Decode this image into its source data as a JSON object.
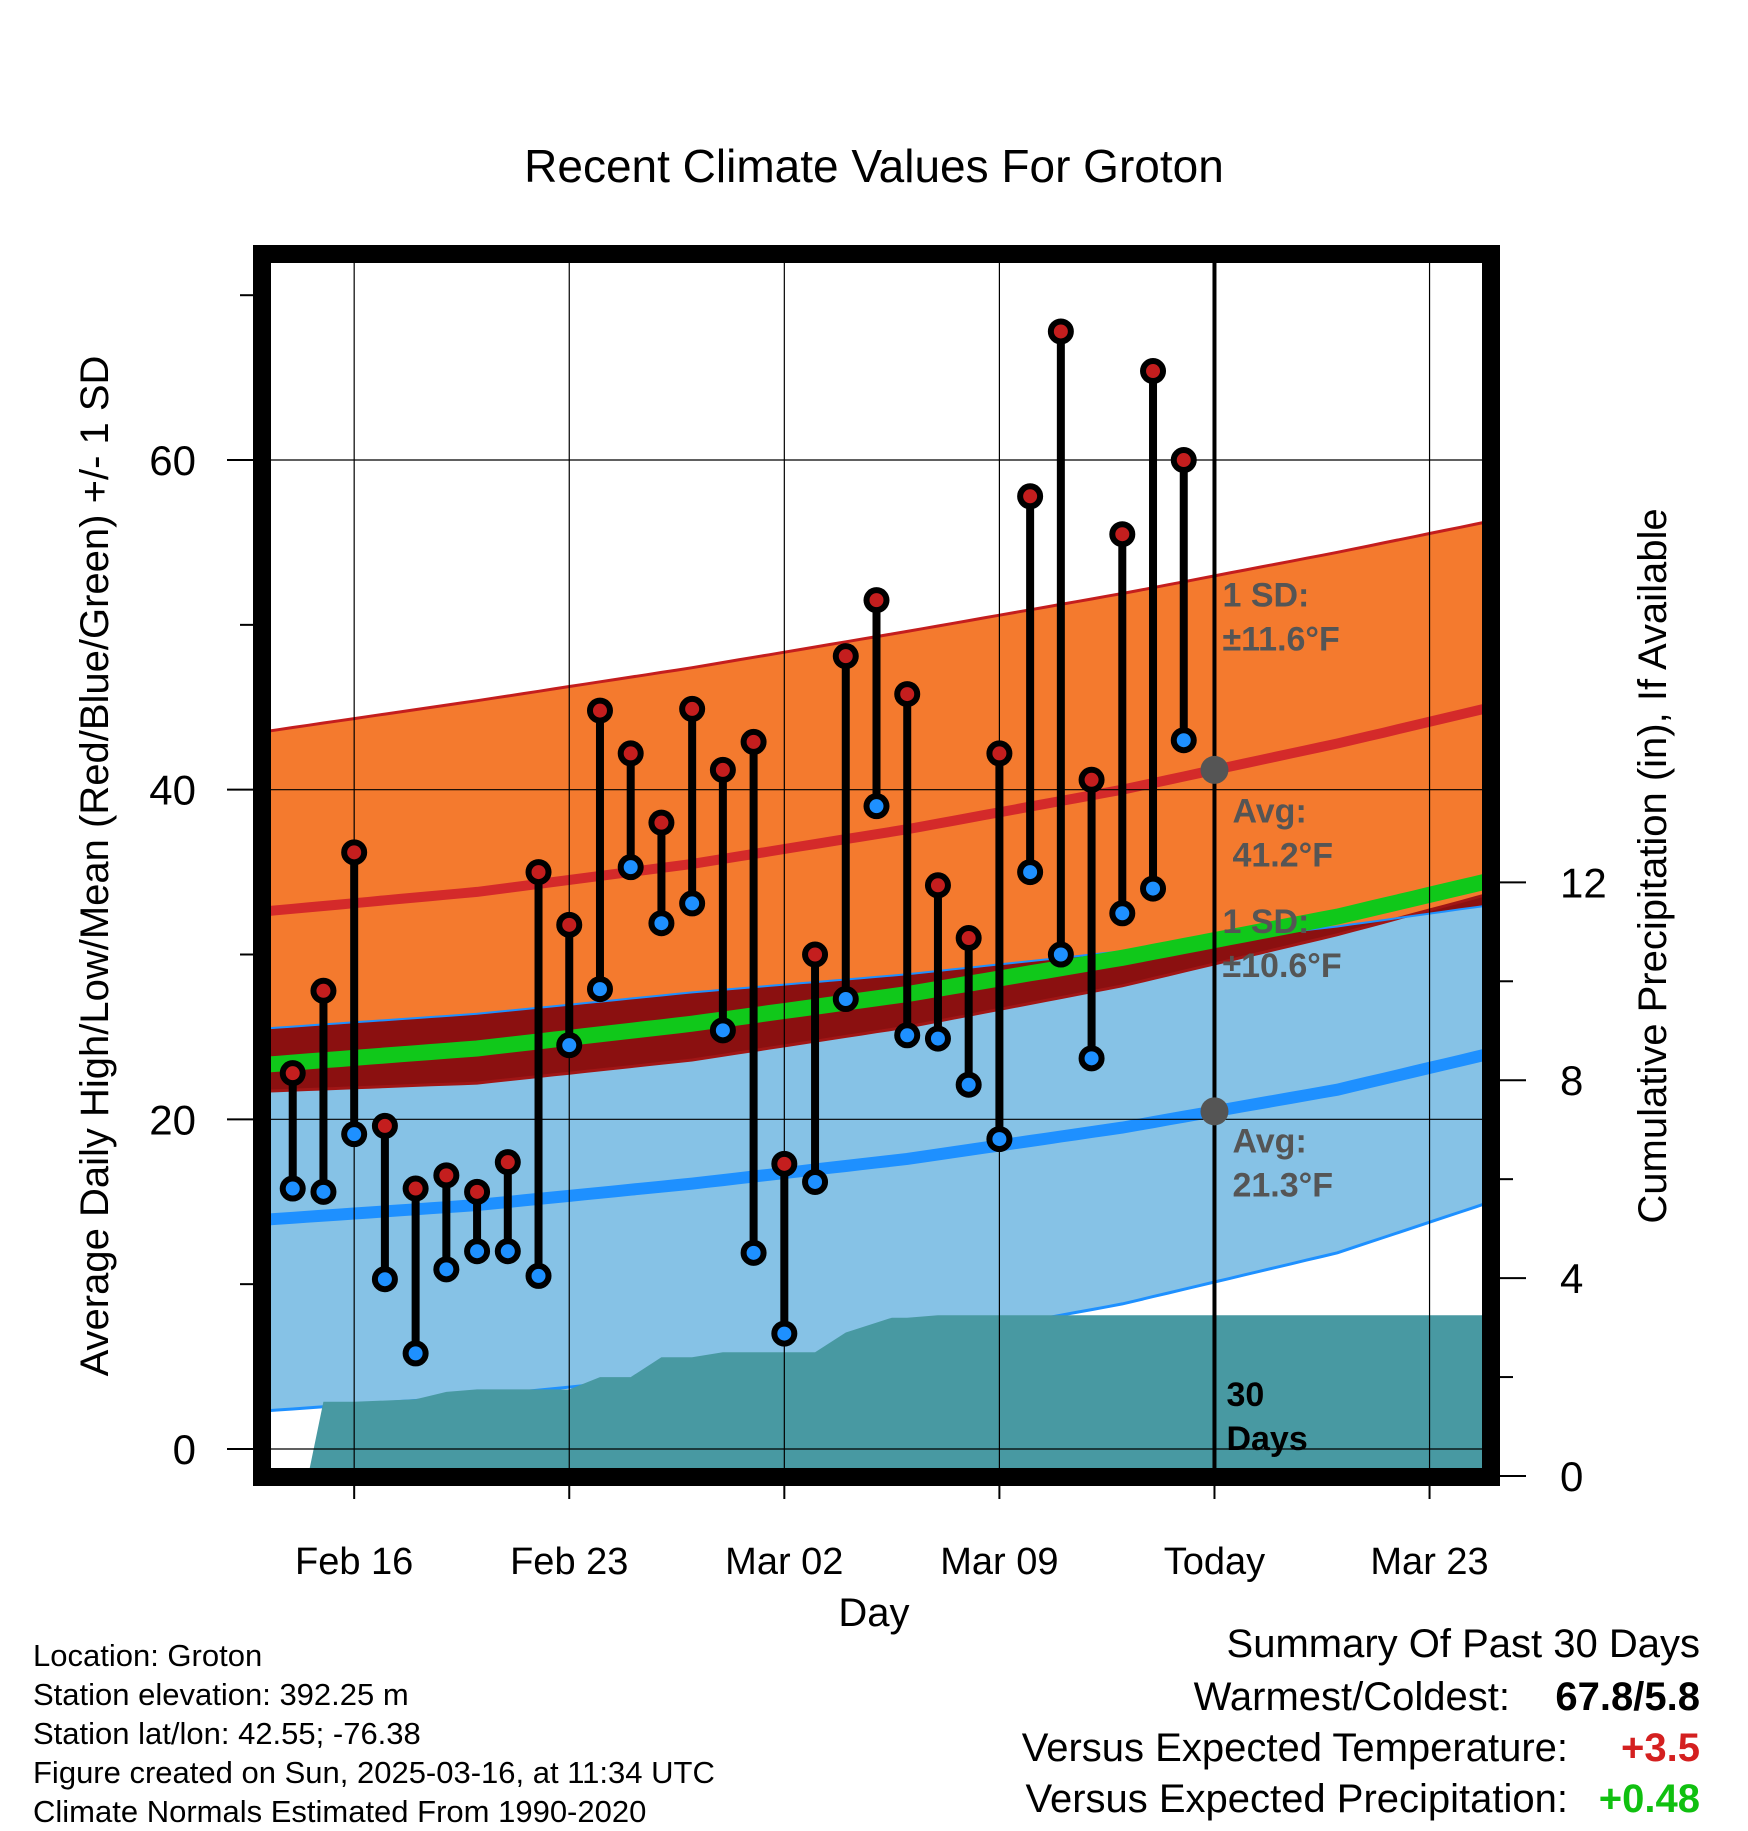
{
  "chart_data": {
    "type": "line",
    "title": "Recent Climate Values For Groton",
    "xlabel": "Day",
    "ylabel": "Average Daily High/Low/Mean (Red/Blue/Green) +/- 1 SD",
    "ylabel_right": "Cumulative Precipitation (in), If Available",
    "x_ticks": [
      {
        "day": 16,
        "label": "Feb 16"
      },
      {
        "day": 23,
        "label": "Feb 23"
      },
      {
        "day": 30,
        "label": "Mar 02"
      },
      {
        "day": 37,
        "label": "Mar 09"
      },
      {
        "day": 44,
        "label": "Today"
      },
      {
        "day": 51,
        "label": "Mar 23"
      }
    ],
    "x_units": "day number (Feb 16 = 16, Mar 02 = 30, Today = Mar 16 = 44)",
    "xlim": [
      13,
      53
    ],
    "ylim": [
      -1.7,
      72.5
    ],
    "y_ticks": [
      0,
      20,
      40,
      60
    ],
    "y2lim": [
      -0.02,
      24.7
    ],
    "y2_ticks": [
      0,
      4,
      8,
      12
    ],
    "grid": true,
    "today_day": 44,
    "normals": {
      "days": [
        13,
        20,
        27,
        34,
        41,
        48,
        53
      ],
      "avg_high": [
        32.6,
        33.8,
        35.5,
        37.6,
        40.0,
        42.8,
        45.0
      ],
      "avg_high_plus_sd": [
        43.5,
        45.4,
        47.4,
        49.6,
        51.9,
        54.4,
        56.3
      ],
      "avg_low": [
        13.9,
        14.8,
        16.1,
        17.6,
        19.5,
        21.8,
        24.0
      ],
      "avg_low_minus_sd": [
        2.3,
        3.2,
        4.5,
        6.4,
        8.8,
        11.9,
        15.0
      ],
      "avg_mean": [
        23.3,
        24.3,
        25.8,
        27.6,
        29.8,
        32.3,
        34.5
      ]
    },
    "series": [
      {
        "name": "High",
        "color": "#c41e1e",
        "days": [
          14,
          15,
          16,
          17,
          18,
          19,
          20,
          21,
          22,
          23,
          24,
          25,
          26,
          27,
          28,
          29,
          30,
          31,
          32,
          33,
          34,
          35,
          36,
          37,
          38,
          39,
          40,
          41,
          42,
          43
        ],
        "values": [
          22.8,
          27.8,
          36.2,
          19.6,
          15.8,
          16.6,
          15.6,
          17.4,
          35.0,
          31.8,
          44.8,
          42.2,
          38.0,
          44.9,
          41.2,
          42.9,
          17.3,
          30.0,
          48.1,
          51.5,
          45.8,
          34.2,
          31.0,
          42.2,
          57.8,
          67.8,
          40.6,
          55.5,
          65.4,
          60.0
        ]
      },
      {
        "name": "Low",
        "color": "#1e90ff",
        "days": [
          14,
          15,
          16,
          17,
          18,
          19,
          20,
          21,
          22,
          23,
          24,
          25,
          26,
          27,
          28,
          29,
          30,
          31,
          32,
          33,
          34,
          35,
          36,
          37,
          38,
          39,
          40,
          41,
          42,
          43
        ],
        "values": [
          15.8,
          15.6,
          19.1,
          10.3,
          5.8,
          10.9,
          12.0,
          12.0,
          10.5,
          24.5,
          27.9,
          35.3,
          31.9,
          33.1,
          25.4,
          11.9,
          7.0,
          16.2,
          27.3,
          39.0,
          25.1,
          24.9,
          22.1,
          18.8,
          35.0,
          30.0,
          23.7,
          32.5,
          34.0,
          43.0
        ]
      }
    ],
    "precipitation": {
      "color": "#4899a2",
      "days": [
        13.5,
        14.5,
        15,
        16,
        18,
        19,
        20,
        21,
        23,
        24,
        25,
        26,
        27,
        28,
        29,
        30,
        31,
        32,
        33,
        33.5,
        34,
        35,
        53
      ],
      "values": [
        0,
        0,
        1.5,
        1.5,
        1.55,
        1.7,
        1.75,
        1.75,
        1.75,
        2.0,
        2.0,
        2.4,
        2.4,
        2.5,
        2.5,
        2.5,
        2.5,
        2.9,
        3.1,
        3.2,
        3.2,
        3.25,
        3.25
      ]
    },
    "annotations": [
      {
        "lines": [
          "1 SD:",
          "±11.6°F"
        ]
      },
      {
        "lines": [
          "Avg:",
          "41.2°F"
        ]
      },
      {
        "lines": [
          "1 SD:",
          "±10.6°F"
        ]
      },
      {
        "lines": [
          "Avg:",
          "21.3°F"
        ]
      },
      {
        "lines": [
          "30",
          "Days"
        ]
      }
    ]
  },
  "info": {
    "location": "Location: Groton",
    "elevation": "Station elevation: 392.25 m",
    "latlon": "Station lat/lon: 42.55; -76.38",
    "created": "Figure created on Sun, 2025-03-16, at 11:34 UTC",
    "normals": "Climate Normals Estimated From 1990-2020"
  },
  "summary": {
    "title": "Summary Of Past 30 Days",
    "warmest_label": "Warmest/Coldest:",
    "warmest_value": "67.8/5.8",
    "temp_label": "Versus Expected Temperature:",
    "temp_value": "+3.5",
    "temp_color": "#d42020",
    "precip_label": "Versus Expected Precipitation:",
    "precip_value": "+0.48",
    "precip_color": "#10c010"
  }
}
